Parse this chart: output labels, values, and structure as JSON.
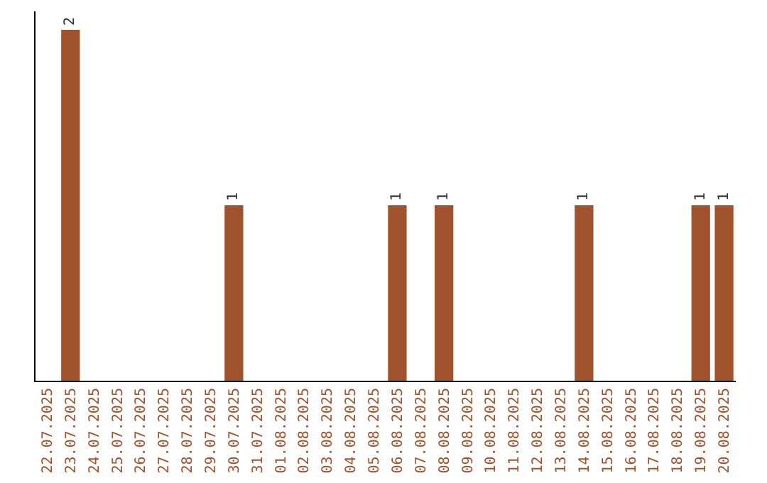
{
  "chart_data": {
    "type": "bar",
    "categories": [
      "22.07.2025",
      "23.07.2025",
      "24.07.2025",
      "25.07.2025",
      "26.07.2025",
      "27.07.2025",
      "28.07.2025",
      "29.07.2025",
      "30.07.2025",
      "31.07.2025",
      "01.08.2025",
      "02.08.2025",
      "03.08.2025",
      "04.08.2025",
      "05.08.2025",
      "06.08.2025",
      "07.08.2025",
      "08.08.2025",
      "09.08.2025",
      "10.08.2025",
      "11.08.2025",
      "12.08.2025",
      "13.08.2025",
      "14.08.2025",
      "15.08.2025",
      "16.08.2025",
      "17.08.2025",
      "18.08.2025",
      "19.08.2025",
      "20.08.2025"
    ],
    "values": [
      0,
      2,
      0,
      0,
      0,
      0,
      0,
      0,
      1,
      0,
      0,
      0,
      0,
      0,
      0,
      1,
      0,
      1,
      0,
      0,
      0,
      0,
      0,
      1,
      0,
      0,
      0,
      0,
      1,
      1
    ],
    "value_labels": [
      null,
      "2",
      null,
      null,
      null,
      null,
      null,
      null,
      "1",
      null,
      null,
      null,
      null,
      null,
      null,
      "1",
      null,
      "1",
      null,
      null,
      null,
      null,
      null,
      "1",
      null,
      null,
      null,
      null,
      "1",
      "1"
    ],
    "color": "#a0522d",
    "grid": false
  }
}
